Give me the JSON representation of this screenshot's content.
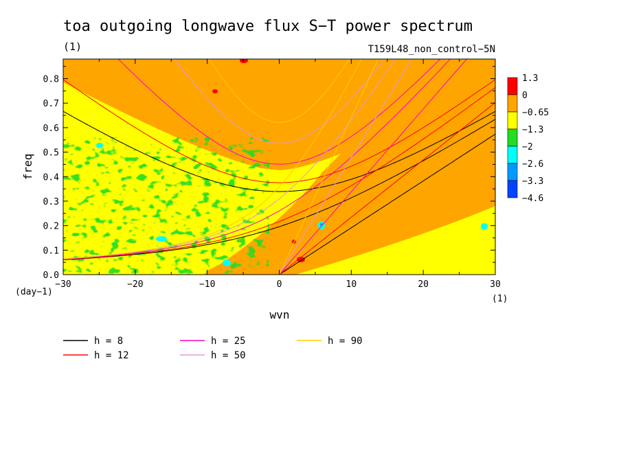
{
  "chart_data": {
    "type": "heatmap",
    "title": "toa outgoing longwave flux S−T power spectrum",
    "subtitle": "T159L48_non_control−5N",
    "title_unit": "(1)",
    "xlabel": "wvn",
    "ylabel": "freq",
    "x_unit": "(1)",
    "y_unit": "(day−1)",
    "xlim": [
      -30,
      30
    ],
    "ylim": [
      0,
      0.88
    ],
    "x_ticks": [
      -30,
      -20,
      -10,
      0,
      10,
      20,
      30
    ],
    "x_tick_labels": [
      "−30",
      "−20",
      "−10",
      "0",
      "10",
      "20",
      "30"
    ],
    "y_ticks": [
      0,
      0.1,
      0.2,
      0.3,
      0.4,
      0.5,
      0.6,
      0.7,
      0.8
    ],
    "y_tick_labels": [
      "0.0",
      "0.1",
      "0.2",
      "0.3",
      "0.4",
      "0.5",
      "0.6",
      "0.7",
      "0.8"
    ],
    "colorbar": {
      "labels": [
        "1.3",
        "0",
        "−0.65",
        "−1.3",
        "−2",
        "−2.6",
        "−3.3",
        "−4.6"
      ],
      "colors": [
        "#ff0000",
        "#ffa500",
        "#ffff00",
        "#22dd22",
        "#00ffff",
        "#0099ff",
        "#0044ff"
      ]
    },
    "series": [
      {
        "name": "h =  8",
        "h": 8,
        "color": "#000000"
      },
      {
        "name": "h = 12",
        "h": 12,
        "color": "#ff0000"
      },
      {
        "name": "h = 25",
        "h": 25,
        "color": "#ff00bb"
      },
      {
        "name": "h = 50",
        "h": 50,
        "color": "#dd99dd"
      },
      {
        "name": "h = 90",
        "h": 90,
        "color": "#ffcc00"
      }
    ],
    "legend_position": "bottom-left",
    "grid": false
  }
}
